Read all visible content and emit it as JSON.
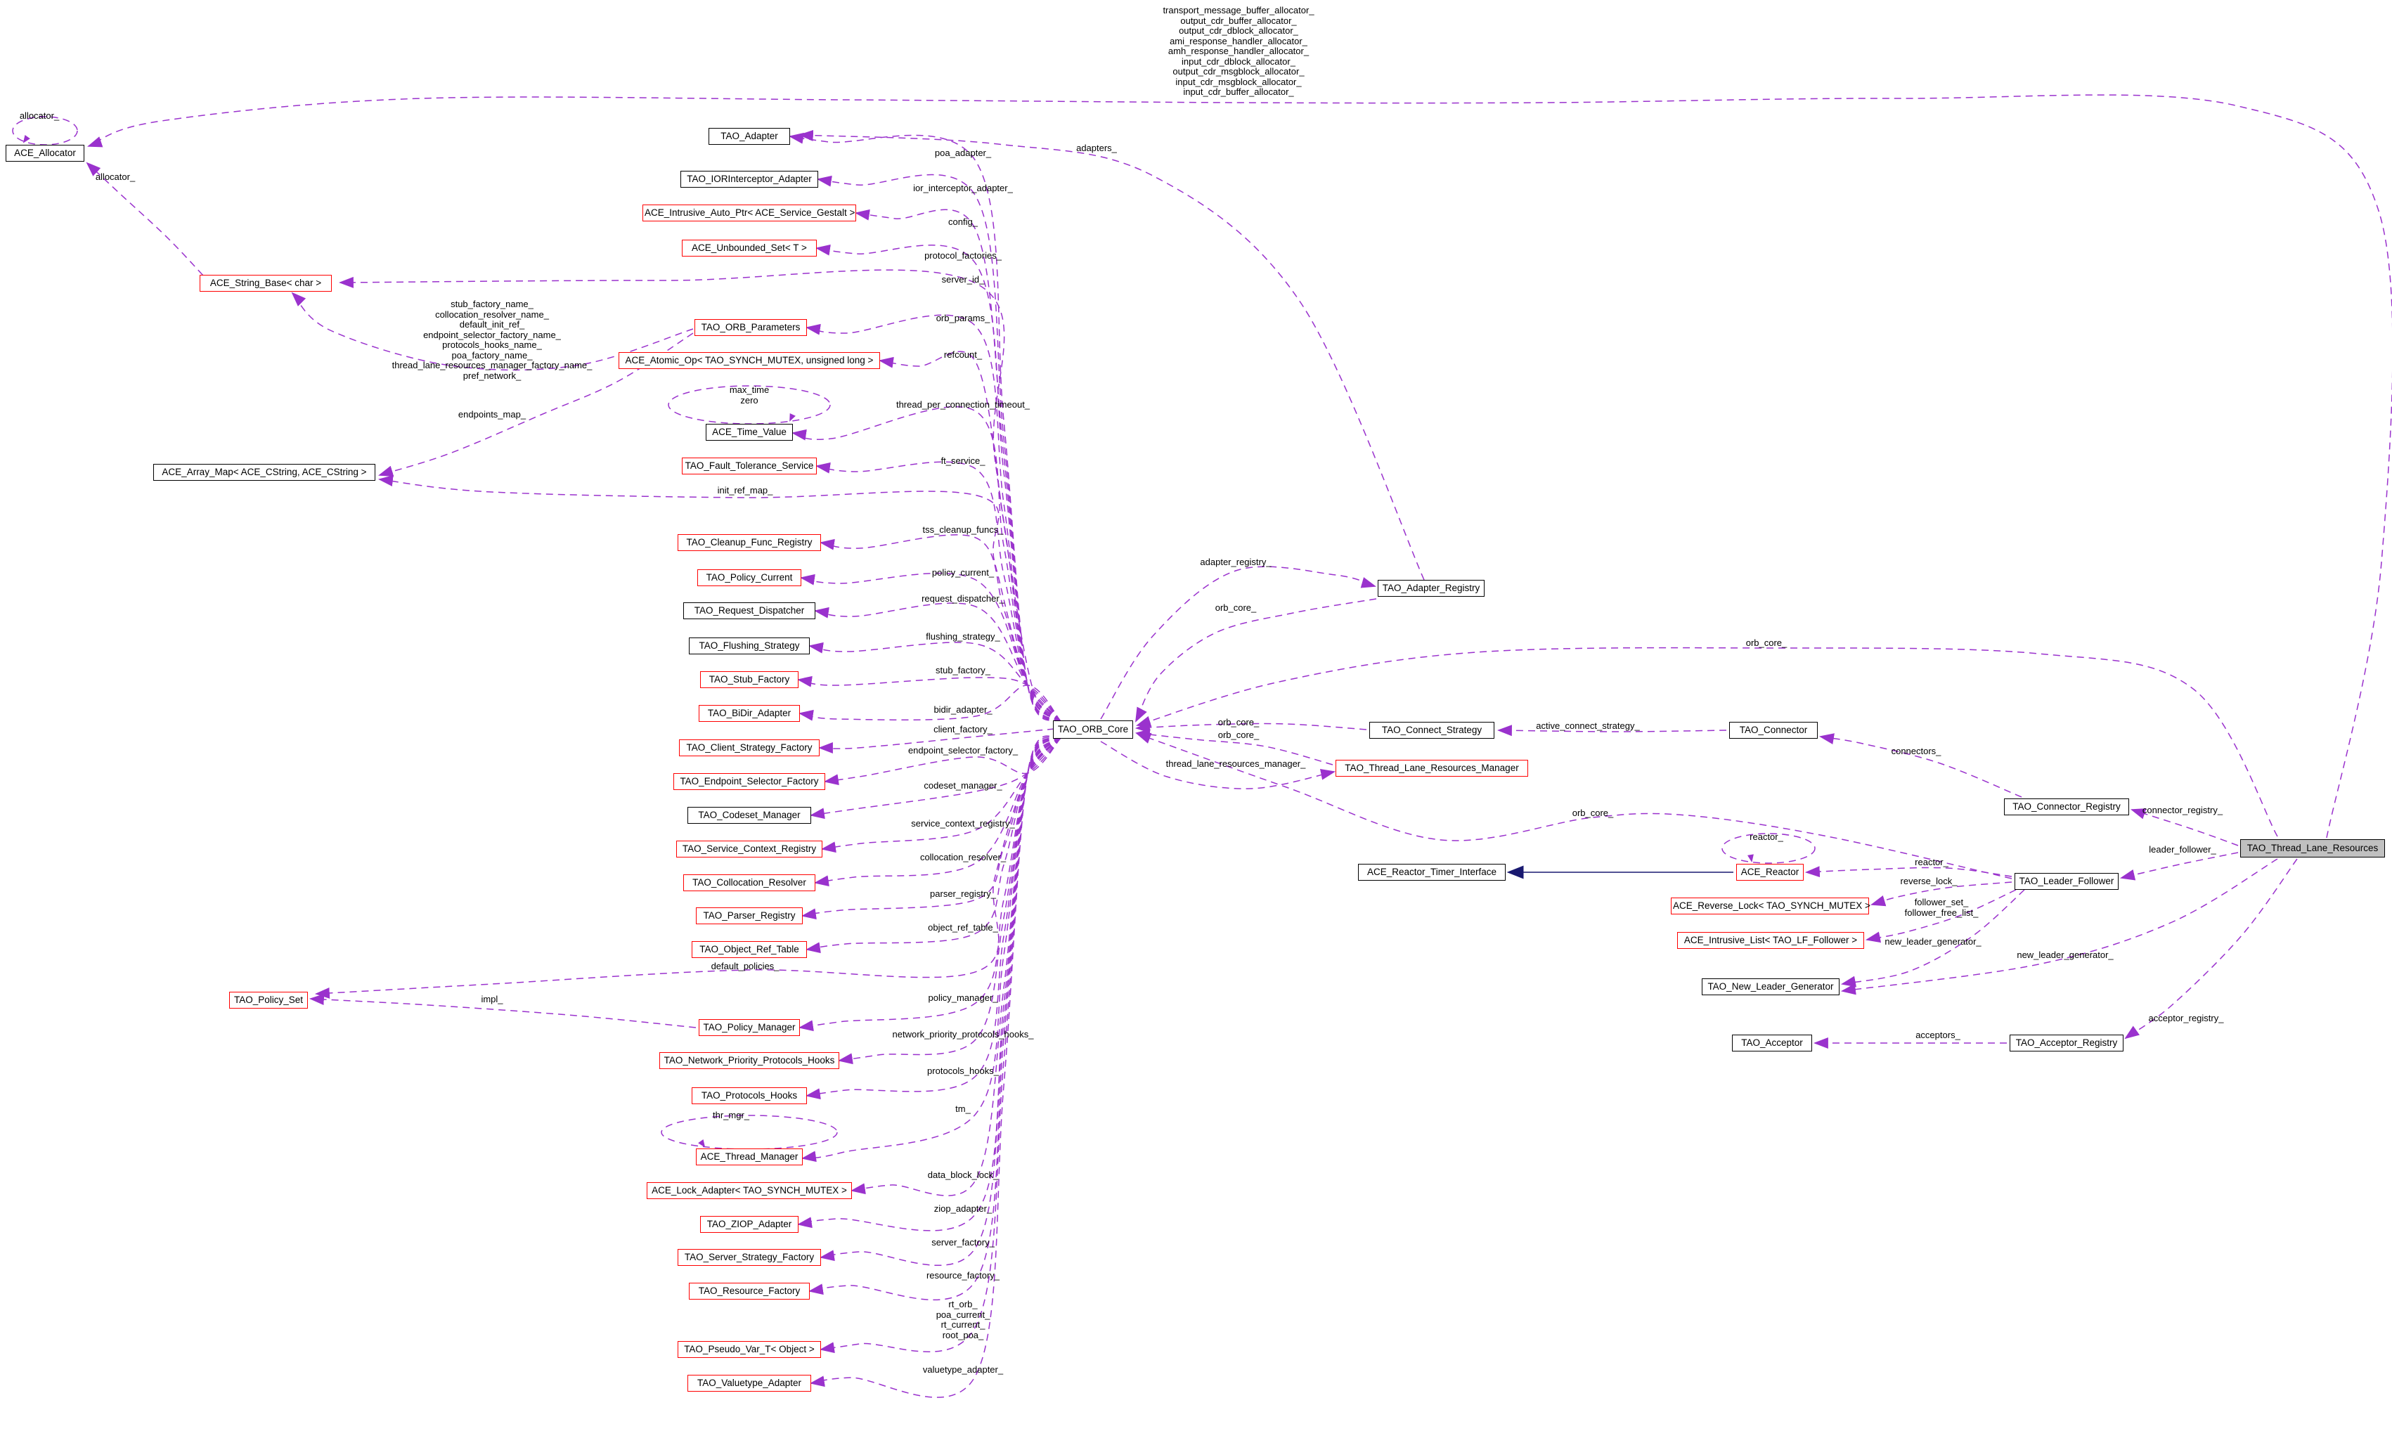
{
  "diagram": {
    "kind": "collaboration-graph",
    "main_class": "TAO_Thread_Lane_Resources"
  },
  "colors": {
    "usage_edge": "#9a32cd",
    "inheritance_edge": "#191970",
    "node_border": "#000000",
    "truncated_node_border": "#ff0000",
    "main_node_fill": "#c0c0c0",
    "background": "#ffffff"
  },
  "nodes": {
    "ace_allocator": "ACE_Allocator",
    "ace_string_base": "ACE_String_Base< char >",
    "ace_array_map": "ACE_Array_Map< ACE_CString, ACE_CString >",
    "tao_adapter": "TAO_Adapter",
    "tao_iorinterceptor_adapter": "TAO_IORInterceptor_Adapter",
    "ace_intrusive_auto_ptr": "ACE_Intrusive_Auto_Ptr< ACE_Service_Gestalt >",
    "ace_unbounded_set": "ACE_Unbounded_Set< T >",
    "tao_orb_parameters": "TAO_ORB_Parameters",
    "ace_atomic_op": "ACE_Atomic_Op< TAO_SYNCH_MUTEX, unsigned long >",
    "ace_time_value": "ACE_Time_Value",
    "tao_fault_tolerance_service": "TAO_Fault_Tolerance_Service",
    "tao_cleanup_func_registry": "TAO_Cleanup_Func_Registry",
    "tao_policy_current": "TAO_Policy_Current",
    "tao_request_dispatcher": "TAO_Request_Dispatcher",
    "tao_flushing_strategy": "TAO_Flushing_Strategy",
    "tao_stub_factory": "TAO_Stub_Factory",
    "tao_bidir_adapter": "TAO_BiDir_Adapter",
    "tao_client_strategy_factory": "TAO_Client_Strategy_Factory",
    "tao_endpoint_selector_factory": "TAO_Endpoint_Selector_Factory",
    "tao_codeset_manager": "TAO_Codeset_Manager",
    "tao_service_context_registry": "TAO_Service_Context_Registry",
    "tao_collocation_resolver": "TAO_Collocation_Resolver",
    "tao_parser_registry": "TAO_Parser_Registry",
    "tao_object_ref_table": "TAO_Object_Ref_Table",
    "tao_policy_set": "TAO_Policy_Set",
    "tao_policy_manager": "TAO_Policy_Manager",
    "tao_network_priority_protocols_hooks": "TAO_Network_Priority_Protocols_Hooks",
    "tao_protocols_hooks": "TAO_Protocols_Hooks",
    "ace_thread_manager": "ACE_Thread_Manager",
    "ace_lock_adapter": "ACE_Lock_Adapter< TAO_SYNCH_MUTEX >",
    "tao_ziop_adapter": "TAO_ZIOP_Adapter",
    "tao_server_strategy_factory": "TAO_Server_Strategy_Factory",
    "tao_resource_factory": "TAO_Resource_Factory",
    "tao_pseudo_var_t": "TAO_Pseudo_Var_T< Object >",
    "tao_valuetype_adapter": "TAO_Valuetype_Adapter",
    "tao_orb_core": "TAO_ORB_Core",
    "tao_adapter_registry": "TAO_Adapter_Registry",
    "tao_connect_strategy": "TAO_Connect_Strategy",
    "tao_thread_lane_resources_manager": "TAO_Thread_Lane_Resources_Manager",
    "tao_connector": "TAO_Connector",
    "tao_connector_registry": "TAO_Connector_Registry",
    "tao_thread_lane_resources": "TAO_Thread_Lane_Resources",
    "ace_reactor_timer_interface": "ACE_Reactor_Timer_Interface",
    "ace_reactor": "ACE_Reactor",
    "tao_leader_follower": "TAO_Leader_Follower",
    "ace_reverse_lock": "ACE_Reverse_Lock< TAO_SYNCH_MUTEX >",
    "ace_intrusive_list": "ACE_Intrusive_List< TAO_LF_Follower >",
    "tao_new_leader_generator": "TAO_New_Leader_Generator",
    "tao_acceptor": "TAO_Acceptor",
    "tao_acceptor_registry": "TAO_Acceptor_Registry"
  },
  "labels": {
    "allocators_block": "transport_message_buffer_allocator_\noutput_cdr_buffer_allocator_\noutput_cdr_dblock_allocator_\nami_response_handler_allocator_\namh_response_handler_allocator_\ninput_cdr_dblock_allocator_\noutput_cdr_msgblock_allocator_\ninput_cdr_msgblock_allocator_\ninput_cdr_buffer_allocator_",
    "allocator_loop": "allocator_",
    "allocator_string": "allocator_",
    "adapters": "adapters_",
    "poa_adapter": "poa_adapter_",
    "ior_interceptor_adapter": "ior_interceptor_adapter_",
    "config": "config_",
    "protocol_factories": "protocol_factories_",
    "server_id": "server_id_",
    "name_params_block": "stub_factory_name_\ncollocation_resolver_name_\ndefault_init_ref_\nendpoint_selector_factory_name_\nprotocols_hooks_name_\npoa_factory_name_\nthread_lane_resources_manager_factory_name_\npref_network_",
    "orb_params": "orb_params_",
    "refcount": "refcount_",
    "max_time_zero": "max_time\nzero",
    "thread_per_connection_timeout": "thread_per_connection_timeout_",
    "endpoints_map": "endpoints_map_",
    "ft_service": "ft_service_",
    "init_ref_map": "init_ref_map_",
    "tss_cleanup_funcs": "tss_cleanup_funcs_",
    "policy_current": "policy_current_",
    "request_dispatcher": "request_dispatcher_",
    "flushing_strategy": "flushing_strategy_",
    "stub_factory": "stub_factory_",
    "bidir_adapter": "bidir_adapter_",
    "client_factory": "client_factory_",
    "endpoint_selector_factory": "endpoint_selector_factory_",
    "codeset_manager": "codeset_manager_",
    "service_context_registry": "service_context_registry_",
    "collocation_resolver": "collocation_resolver_",
    "parser_registry": "parser_registry_",
    "object_ref_table": "object_ref_table_",
    "default_policies": "default_policies_",
    "impl": "impl_",
    "policy_manager": "policy_manager_",
    "network_priority_protocols_hooks": "network_priority_protocols_hooks_",
    "protocols_hooks": "protocols_hooks_",
    "tm": "tm_",
    "thr_mgr": "thr_mgr_",
    "data_block_lock": "data_block_lock_",
    "ziop_adapter": "ziop_adapter_",
    "server_factory": "server_factory_",
    "resource_factory": "resource_factory_",
    "rt_block": "rt_orb_\npoa_current_\nrt_current_\nroot_poa_",
    "valuetype_adapter": "valuetype_adapter_",
    "adapter_registry": "adapter_registry_",
    "orb_core_adapter_registry": "orb_core_",
    "orb_core_connector_registry": "orb_core_",
    "orb_core_connect_strategy": "orb_core_",
    "orb_core_tlrm": "orb_core_",
    "orb_core_leader_follower": "orb_core_",
    "thread_lane_resources_manager": "thread_lane_resources_manager_",
    "active_connect_strategy": "active_connect_strategy_",
    "connectors": "connectors_",
    "connector_registry": "connector_registry_",
    "leader_follower": "leader_follower_",
    "reactor_loop": "reactor_",
    "reactor": "reactor_",
    "reverse_lock": "reverse_lock_",
    "follower_block": "follower_set_\nfollower_free_list_",
    "new_leader_generator_lf": "new_leader_generator_",
    "new_leader_generator_tlr": "new_leader_generator_",
    "acceptors": "acceptors_",
    "acceptor_registry": "acceptor_registry_"
  }
}
